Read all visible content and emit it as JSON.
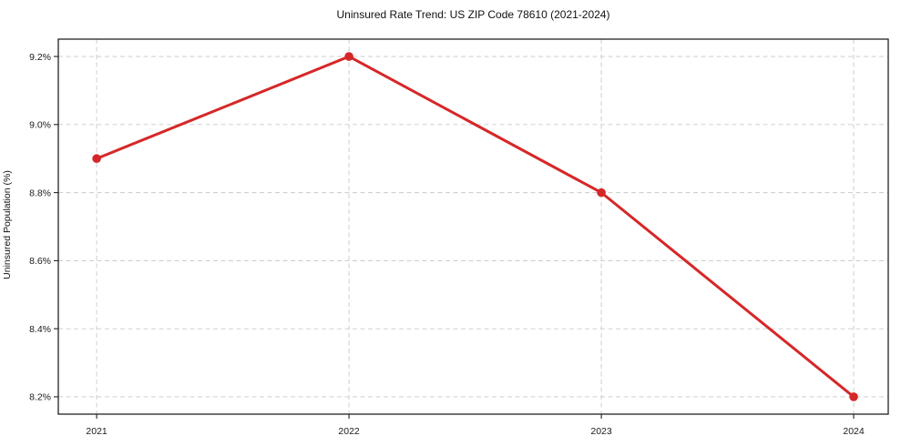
{
  "chart_data": {
    "type": "line",
    "title": "Uninsured Rate Trend: US ZIP Code 78610 (2021-2024)",
    "xlabel": "",
    "ylabel": "Uninsured Population (%)",
    "x": [
      2021,
      2022,
      2023,
      2024
    ],
    "series": [
      {
        "name": "Uninsured Population (%)",
        "values": [
          8.9,
          9.2,
          8.8,
          8.2
        ]
      }
    ],
    "x_tick_labels": [
      "2021",
      "2022",
      "2023",
      "2024"
    ],
    "y_ticks": [
      8.2,
      8.4,
      8.6,
      8.8,
      9.0,
      9.2
    ],
    "y_tick_labels": [
      "8.2%",
      "8.4%",
      "8.6%",
      "8.8%",
      "9.0%",
      "9.2%"
    ],
    "xlim": [
      2020.848,
      2024.137
    ],
    "ylim": [
      8.149,
      9.251
    ],
    "grid": true,
    "grid_style": "dashed",
    "legend_position": "none",
    "colors": {
      "line": "#d62728",
      "marker": "#d62728",
      "grid": "#c9c9c9",
      "spine": "#222222",
      "text": "#1a1a1a",
      "background": "#ffffff"
    }
  }
}
